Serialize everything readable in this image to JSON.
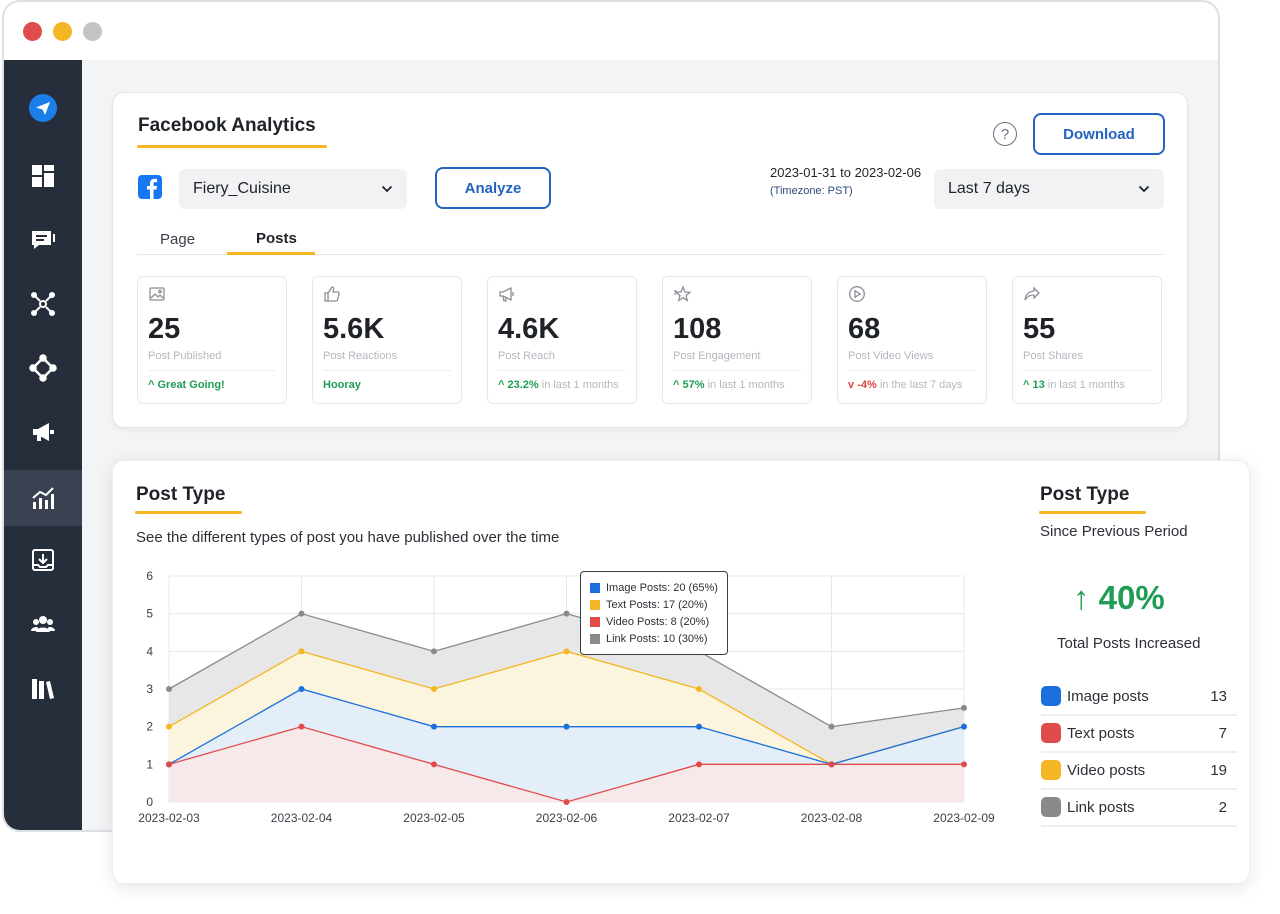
{
  "header": {
    "title": "Facebook Analytics",
    "download_label": "Download",
    "help_label": "?"
  },
  "filters": {
    "account": "Fiery_Cuisine",
    "analyze_label": "Analyze",
    "date_range": "2023-01-31 to 2023-02-06",
    "timezone": "(Timezone: PST)",
    "period": "Last 7 days"
  },
  "tabs": [
    {
      "label": "Page"
    },
    {
      "label": "Posts"
    }
  ],
  "stats": [
    {
      "value": "25",
      "label": "Post Published",
      "trend_strong": "Great Going!",
      "trend_rest": "",
      "direction": "up",
      "icon": "image-icon"
    },
    {
      "value": "5.6K",
      "label": "Post Reactions",
      "trend_strong": "Hooray",
      "trend_rest": "",
      "direction": "none",
      "icon": "thumbs-up-icon"
    },
    {
      "value": "4.6K",
      "label": "Post Reach",
      "trend_strong": "23.2%",
      "trend_rest": "in last 1 months",
      "direction": "up",
      "icon": "megaphone-icon"
    },
    {
      "value": "108",
      "label": "Post Engagement",
      "trend_strong": "57%",
      "trend_rest": "in last 1 months",
      "direction": "up",
      "icon": "star-icon"
    },
    {
      "value": "68",
      "label": "Post Video Views",
      "trend_strong": "-4%",
      "trend_rest": "in the last 7 days",
      "direction": "down",
      "icon": "play-icon"
    },
    {
      "value": "55",
      "label": "Post Shares",
      "trend_strong": "13",
      "trend_rest": "in last 1 months",
      "direction": "up",
      "icon": "share-icon"
    }
  ],
  "post_type": {
    "title": "Post Type",
    "description": "See the different types of post you have published over the time",
    "tooltip": [
      {
        "label": "Image Posts: 20 (65%)",
        "color": "#1a6fdc"
      },
      {
        "label": "Text Posts: 17 (20%)",
        "color": "#f4b624"
      },
      {
        "label": "Video Posts: 8 (20%)",
        "color": "#e04b4b"
      },
      {
        "label": "Link Posts: 10 (30%)",
        "color": "#8a8a8a"
      }
    ]
  },
  "summary": {
    "title": "Post Type",
    "subtitle": "Since Previous Period",
    "change": "40%",
    "caption": "Total Posts Increased",
    "items": [
      {
        "name": "Image posts",
        "count": "13",
        "color": "#1a6fdc"
      },
      {
        "name": "Text posts",
        "count": "7",
        "color": "#e04b4b"
      },
      {
        "name": "Video posts",
        "count": "19",
        "color": "#f4b624"
      },
      {
        "name": "Link posts",
        "count": "2",
        "color": "#8a8a8a"
      }
    ]
  },
  "chart_data": {
    "type": "area",
    "x": [
      "2023-02-03",
      "2023-02-04",
      "2023-02-05",
      "2023-02-06",
      "2023-02-07",
      "2023-02-08",
      "2023-02-09"
    ],
    "ylim": [
      0,
      6
    ],
    "yticks": [
      0,
      1,
      2,
      3,
      4,
      5,
      6
    ],
    "series": [
      {
        "color": "#8a8a8a",
        "fill": "#e6e6e6",
        "values": [
          3,
          5,
          4,
          5,
          4,
          2,
          2.5
        ]
      },
      {
        "color": "#f4b624",
        "fill": "#fdf6dc",
        "values": [
          2,
          4,
          3,
          4,
          3,
          1,
          2
        ]
      },
      {
        "color": "#1a6fdc",
        "fill": "#e3edf9",
        "values": [
          1,
          3,
          2,
          2,
          2,
          1,
          2
        ]
      },
      {
        "color": "#e04b4b",
        "fill": "#f8e7e8",
        "values": [
          1,
          2,
          1,
          0,
          1,
          1,
          1
        ]
      }
    ]
  }
}
